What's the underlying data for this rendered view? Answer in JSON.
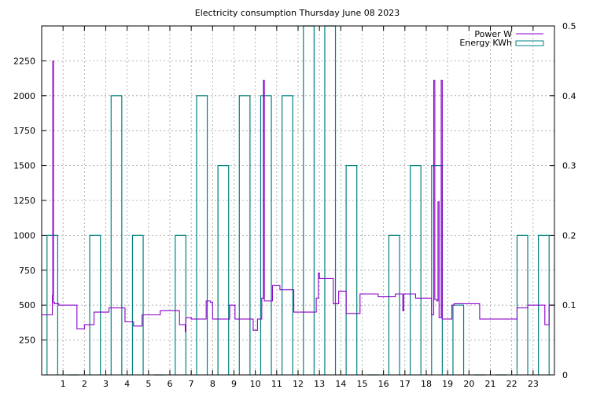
{
  "chart_data": {
    "type": "line",
    "title": "Electricity consumption Thursday June 08 2023",
    "xlabel": "",
    "ylabel": "",
    "y2label": "",
    "xlim": [
      0,
      24
    ],
    "ylim": [
      0,
      2500
    ],
    "y2lim": [
      0,
      0.5
    ],
    "xticks": [
      1,
      2,
      3,
      4,
      5,
      6,
      7,
      8,
      9,
      10,
      11,
      12,
      13,
      14,
      15,
      16,
      17,
      18,
      19,
      20,
      21,
      22,
      23
    ],
    "yticks": [
      250,
      500,
      750,
      1000,
      1250,
      1500,
      1750,
      2000,
      2250
    ],
    "y2ticks": [
      0,
      0.1,
      0.2,
      0.3,
      0.4,
      0.5
    ],
    "grid": true,
    "legend": "top-right",
    "series": [
      {
        "name": "Power W",
        "axis": "left",
        "style": "steps",
        "color": "#8b00c8",
        "points": [
          [
            0,
            430
          ],
          [
            0.45,
            430
          ],
          [
            0.5,
            570
          ],
          [
            0.52,
            2250
          ],
          [
            0.55,
            520
          ],
          [
            0.6,
            510
          ],
          [
            0.8,
            500
          ],
          [
            1.6,
            500
          ],
          [
            1.65,
            330
          ],
          [
            1.9,
            330
          ],
          [
            2.0,
            360
          ],
          [
            2.4,
            360
          ],
          [
            2.45,
            450
          ],
          [
            3.1,
            450
          ],
          [
            3.15,
            480
          ],
          [
            3.85,
            480
          ],
          [
            3.9,
            380
          ],
          [
            4.25,
            380
          ],
          [
            4.3,
            350
          ],
          [
            4.65,
            350
          ],
          [
            4.7,
            430
          ],
          [
            5.5,
            430
          ],
          [
            5.55,
            460
          ],
          [
            6.4,
            460
          ],
          [
            6.45,
            360
          ],
          [
            6.7,
            360
          ],
          [
            6.72,
            310
          ],
          [
            6.75,
            410
          ],
          [
            7.0,
            400
          ],
          [
            7.65,
            400
          ],
          [
            7.7,
            530
          ],
          [
            7.9,
            520
          ],
          [
            8.0,
            400
          ],
          [
            8.75,
            400
          ],
          [
            8.8,
            500
          ],
          [
            9.0,
            500
          ],
          [
            9.05,
            400
          ],
          [
            9.85,
            400
          ],
          [
            9.9,
            320
          ],
          [
            10.05,
            320
          ],
          [
            10.1,
            400
          ],
          [
            10.25,
            400
          ],
          [
            10.3,
            550
          ],
          [
            10.38,
            2110
          ],
          [
            10.42,
            530
          ],
          [
            10.75,
            530
          ],
          [
            10.8,
            640
          ],
          [
            11.1,
            640
          ],
          [
            11.15,
            610
          ],
          [
            11.75,
            610
          ],
          [
            11.8,
            450
          ],
          [
            12.75,
            450
          ],
          [
            12.85,
            550
          ],
          [
            12.95,
            730
          ],
          [
            13.0,
            690
          ],
          [
            13.6,
            690
          ],
          [
            13.65,
            510
          ],
          [
            13.85,
            510
          ],
          [
            13.9,
            600
          ],
          [
            14.2,
            600
          ],
          [
            14.25,
            440
          ],
          [
            14.8,
            440
          ],
          [
            14.9,
            580
          ],
          [
            15.7,
            580
          ],
          [
            15.75,
            560
          ],
          [
            16.5,
            560
          ],
          [
            16.55,
            580
          ],
          [
            16.85,
            580
          ],
          [
            16.9,
            460
          ],
          [
            16.95,
            580
          ],
          [
            17.45,
            580
          ],
          [
            17.5,
            550
          ],
          [
            18.2,
            550
          ],
          [
            18.25,
            430
          ],
          [
            18.35,
            2110
          ],
          [
            18.4,
            540
          ],
          [
            18.5,
            530
          ],
          [
            18.55,
            1240
          ],
          [
            18.6,
            410
          ],
          [
            18.7,
            2110
          ],
          [
            18.75,
            400
          ],
          [
            19.15,
            400
          ],
          [
            19.2,
            500
          ],
          [
            19.3,
            510
          ],
          [
            20.4,
            510
          ],
          [
            20.5,
            400
          ],
          [
            22.2,
            400
          ],
          [
            22.25,
            480
          ],
          [
            22.7,
            480
          ],
          [
            22.75,
            500
          ],
          [
            23.5,
            500
          ],
          [
            23.55,
            360
          ],
          [
            23.7,
            360
          ],
          [
            23.75,
            500
          ],
          [
            24.0,
            510
          ]
        ]
      },
      {
        "name": "Energy KWh",
        "axis": "right",
        "style": "histeps",
        "color": "#008080",
        "x": [
          0,
          1,
          2,
          3,
          4,
          5,
          6,
          7,
          8,
          9,
          10,
          11,
          12,
          13,
          14,
          15,
          16,
          17,
          18,
          19,
          20,
          21,
          22,
          23
        ],
        "values": [
          0.2,
          0,
          0.2,
          0.4,
          0.2,
          0,
          0.2,
          0.4,
          0.3,
          0.4,
          0.4,
          0.4,
          0.5,
          0.5,
          0.3,
          0,
          0.2,
          0.3,
          0.3,
          0.1,
          0,
          0,
          0.2,
          0.2
        ]
      }
    ]
  }
}
